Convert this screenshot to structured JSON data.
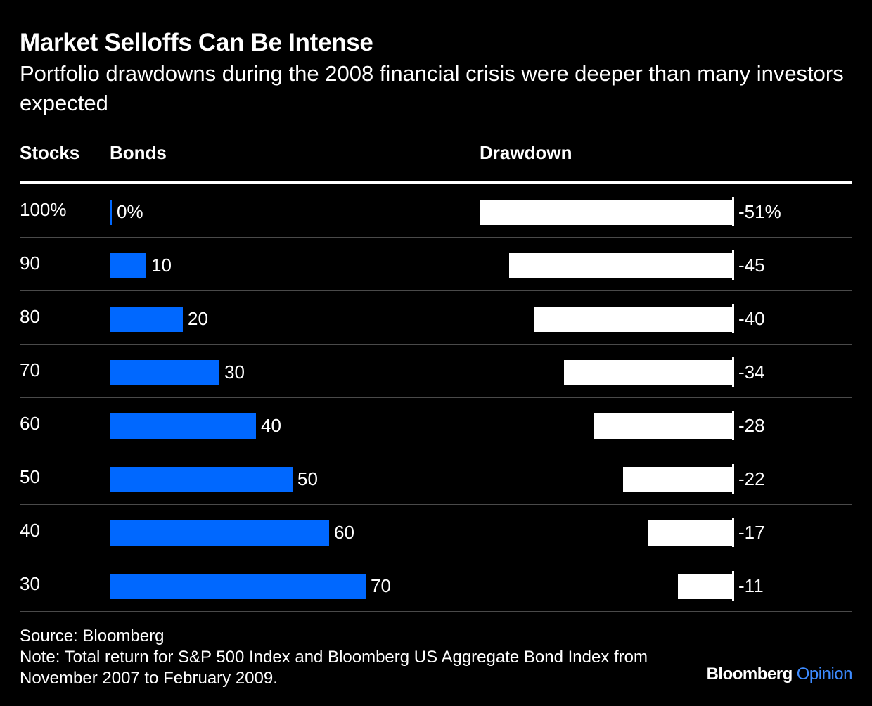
{
  "title": "Market Selloffs Can Be Intense",
  "subtitle": "Portfolio drawdowns during the 2008 financial crisis were deeper than many investors expected",
  "columns": {
    "stocks": "Stocks",
    "bonds": "Bonds",
    "drawdown": "Drawdown"
  },
  "chart_data": {
    "type": "bar",
    "title": "Market Selloffs Can Be Intense",
    "categories": [
      "100%",
      "90",
      "80",
      "70",
      "60",
      "50",
      "40",
      "30"
    ],
    "series": [
      {
        "name": "Bonds",
        "values": [
          0,
          10,
          20,
          30,
          40,
          50,
          60,
          70
        ],
        "labels": [
          "0%",
          "10",
          "20",
          "30",
          "40",
          "50",
          "60",
          "70"
        ],
        "color": "#0068ff"
      },
      {
        "name": "Drawdown",
        "values": [
          -51,
          -45,
          -40,
          -34,
          -28,
          -22,
          -17,
          -11
        ],
        "labels": [
          "-51%",
          "-45",
          "-40",
          "-34",
          "-28",
          "-22",
          "-17",
          "-11"
        ],
        "color": "#ffffff"
      }
    ],
    "stocks_values": [
      100,
      90,
      80,
      70,
      60,
      50,
      40,
      30
    ],
    "bonds_range": [
      0,
      100
    ],
    "drawdown_range": [
      -51,
      0
    ],
    "legend": "none",
    "grid": false
  },
  "footer": {
    "source": "Source: Bloomberg",
    "note": "Note: Total return for S&P 500 Index and Bloomberg US Aggregate Bond Index from November 2007 to February 2009."
  },
  "brand": {
    "part1": "Bloomberg",
    "part2": "Opinion"
  },
  "colors": {
    "background": "#000000",
    "bonds_bar": "#0068ff",
    "drawdown_bar": "#ffffff",
    "brand_accent": "#3d8bff"
  }
}
